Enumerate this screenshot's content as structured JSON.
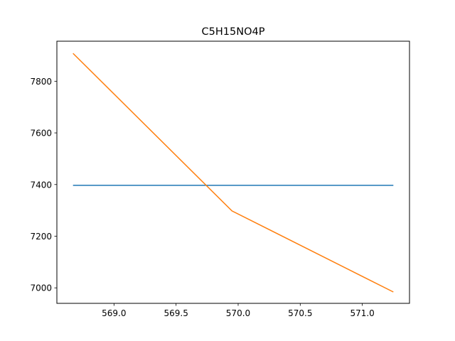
{
  "chart_data": {
    "type": "line",
    "title": "C5H15NO4P",
    "xlabel": "",
    "ylabel": "",
    "xlim": [
      568.54,
      571.38
    ],
    "ylim": [
      6940,
      7955
    ],
    "x_ticks": [
      569.0,
      569.5,
      570.0,
      570.5,
      571.0
    ],
    "x_tick_labels": [
      "569.0",
      "569.5",
      "570.0",
      "570.5",
      "571.0"
    ],
    "y_ticks": [
      7000,
      7200,
      7400,
      7600,
      7800
    ],
    "y_tick_labels": [
      "7000",
      "7200",
      "7400",
      "7600",
      "7800"
    ],
    "grid": false,
    "series": [
      {
        "color": "#1f77b4",
        "x": [
          568.67,
          571.25
        ],
        "y": [
          7397,
          7397
        ]
      },
      {
        "color": "#ff7f0e",
        "x": [
          568.67,
          569.95,
          571.25
        ],
        "y": [
          7908,
          7298,
          6984
        ]
      }
    ]
  }
}
